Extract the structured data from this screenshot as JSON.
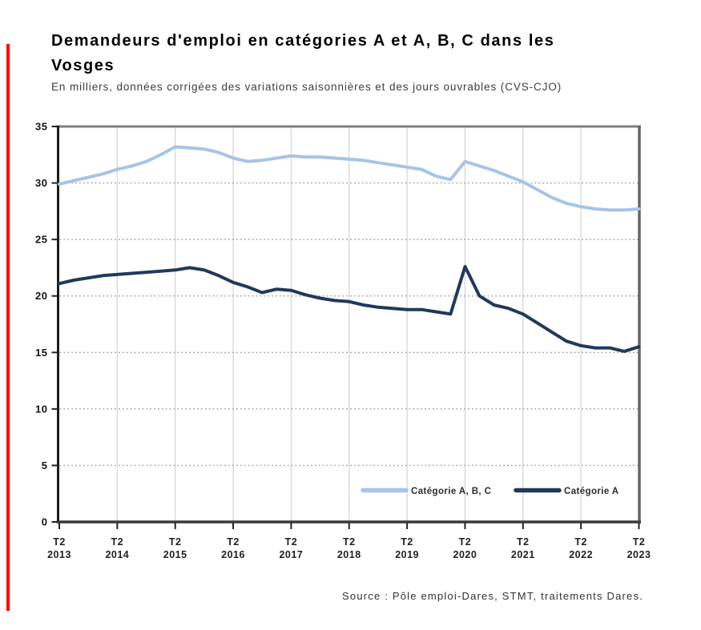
{
  "accent": {
    "red_bar_color": "#ff0000"
  },
  "header": {
    "title": "Demandeurs d'emploi en catégories A et A, B, C dans les Vosges",
    "title_lines": [
      "Demandeurs d'emploi en catégories A et A, B, C dans les",
      "Vosges"
    ],
    "subtitle": "En milliers, données corrigées des variations saisonnières et des jours ouvrables (CVS-CJO)"
  },
  "footer": {
    "source": "Source : Pôle emploi-Dares, STMT, traitements Dares."
  },
  "chart_data": {
    "type": "line",
    "title": "Demandeurs d'emploi en catégories A et A, B, C dans les Vosges",
    "subtitle": "En milliers, données corrigées des variations saisonnières et des jours ouvrables (CVS-CJO)",
    "unit": "milliers",
    "ylim": [
      0,
      35
    ],
    "y_ticks": [
      0,
      5,
      10,
      15,
      20,
      25,
      30,
      35
    ],
    "x_tick_prefix": "T2",
    "x_tick_years": [
      "2013",
      "2014",
      "2015",
      "2016",
      "2017",
      "2018",
      "2019",
      "2020",
      "2021",
      "2022",
      "2023"
    ],
    "points_per_year": 4,
    "grid": {
      "vertical": "solid light gray at each year",
      "horizontal": "dotted at multiples of 5"
    },
    "legend_position": "inside-bottom",
    "series": [
      {
        "name": "Catégorie A, B, C",
        "color": "#a6c4e7",
        "values": [
          29.9,
          30.2,
          30.5,
          30.8,
          31.2,
          31.5,
          31.9,
          32.5,
          33.2,
          33.1,
          33.0,
          32.7,
          32.2,
          31.9,
          32.0,
          32.2,
          32.4,
          32.3,
          32.3,
          32.2,
          32.1,
          32.0,
          31.8,
          31.6,
          31.4,
          31.2,
          30.6,
          30.3,
          31.9,
          31.5,
          31.1,
          30.6,
          30.1,
          29.4,
          28.7,
          28.2,
          27.9,
          27.7,
          27.6,
          27.6,
          27.7
        ]
      },
      {
        "name": "Catégorie A",
        "color": "#20395b",
        "values": [
          21.1,
          21.4,
          21.6,
          21.8,
          21.9,
          22.0,
          22.1,
          22.2,
          22.3,
          22.5,
          22.3,
          21.8,
          21.2,
          20.8,
          20.3,
          20.6,
          20.5,
          20.1,
          19.8,
          19.6,
          19.5,
          19.2,
          19.0,
          18.9,
          18.8,
          18.8,
          18.6,
          18.4,
          22.6,
          20.0,
          19.2,
          18.9,
          18.4,
          17.6,
          16.8,
          16.0,
          15.6,
          15.4,
          15.4,
          15.1,
          15.5
        ]
      }
    ],
    "source": "Source : Pôle emploi-Dares, STMT, traitements Dares."
  }
}
